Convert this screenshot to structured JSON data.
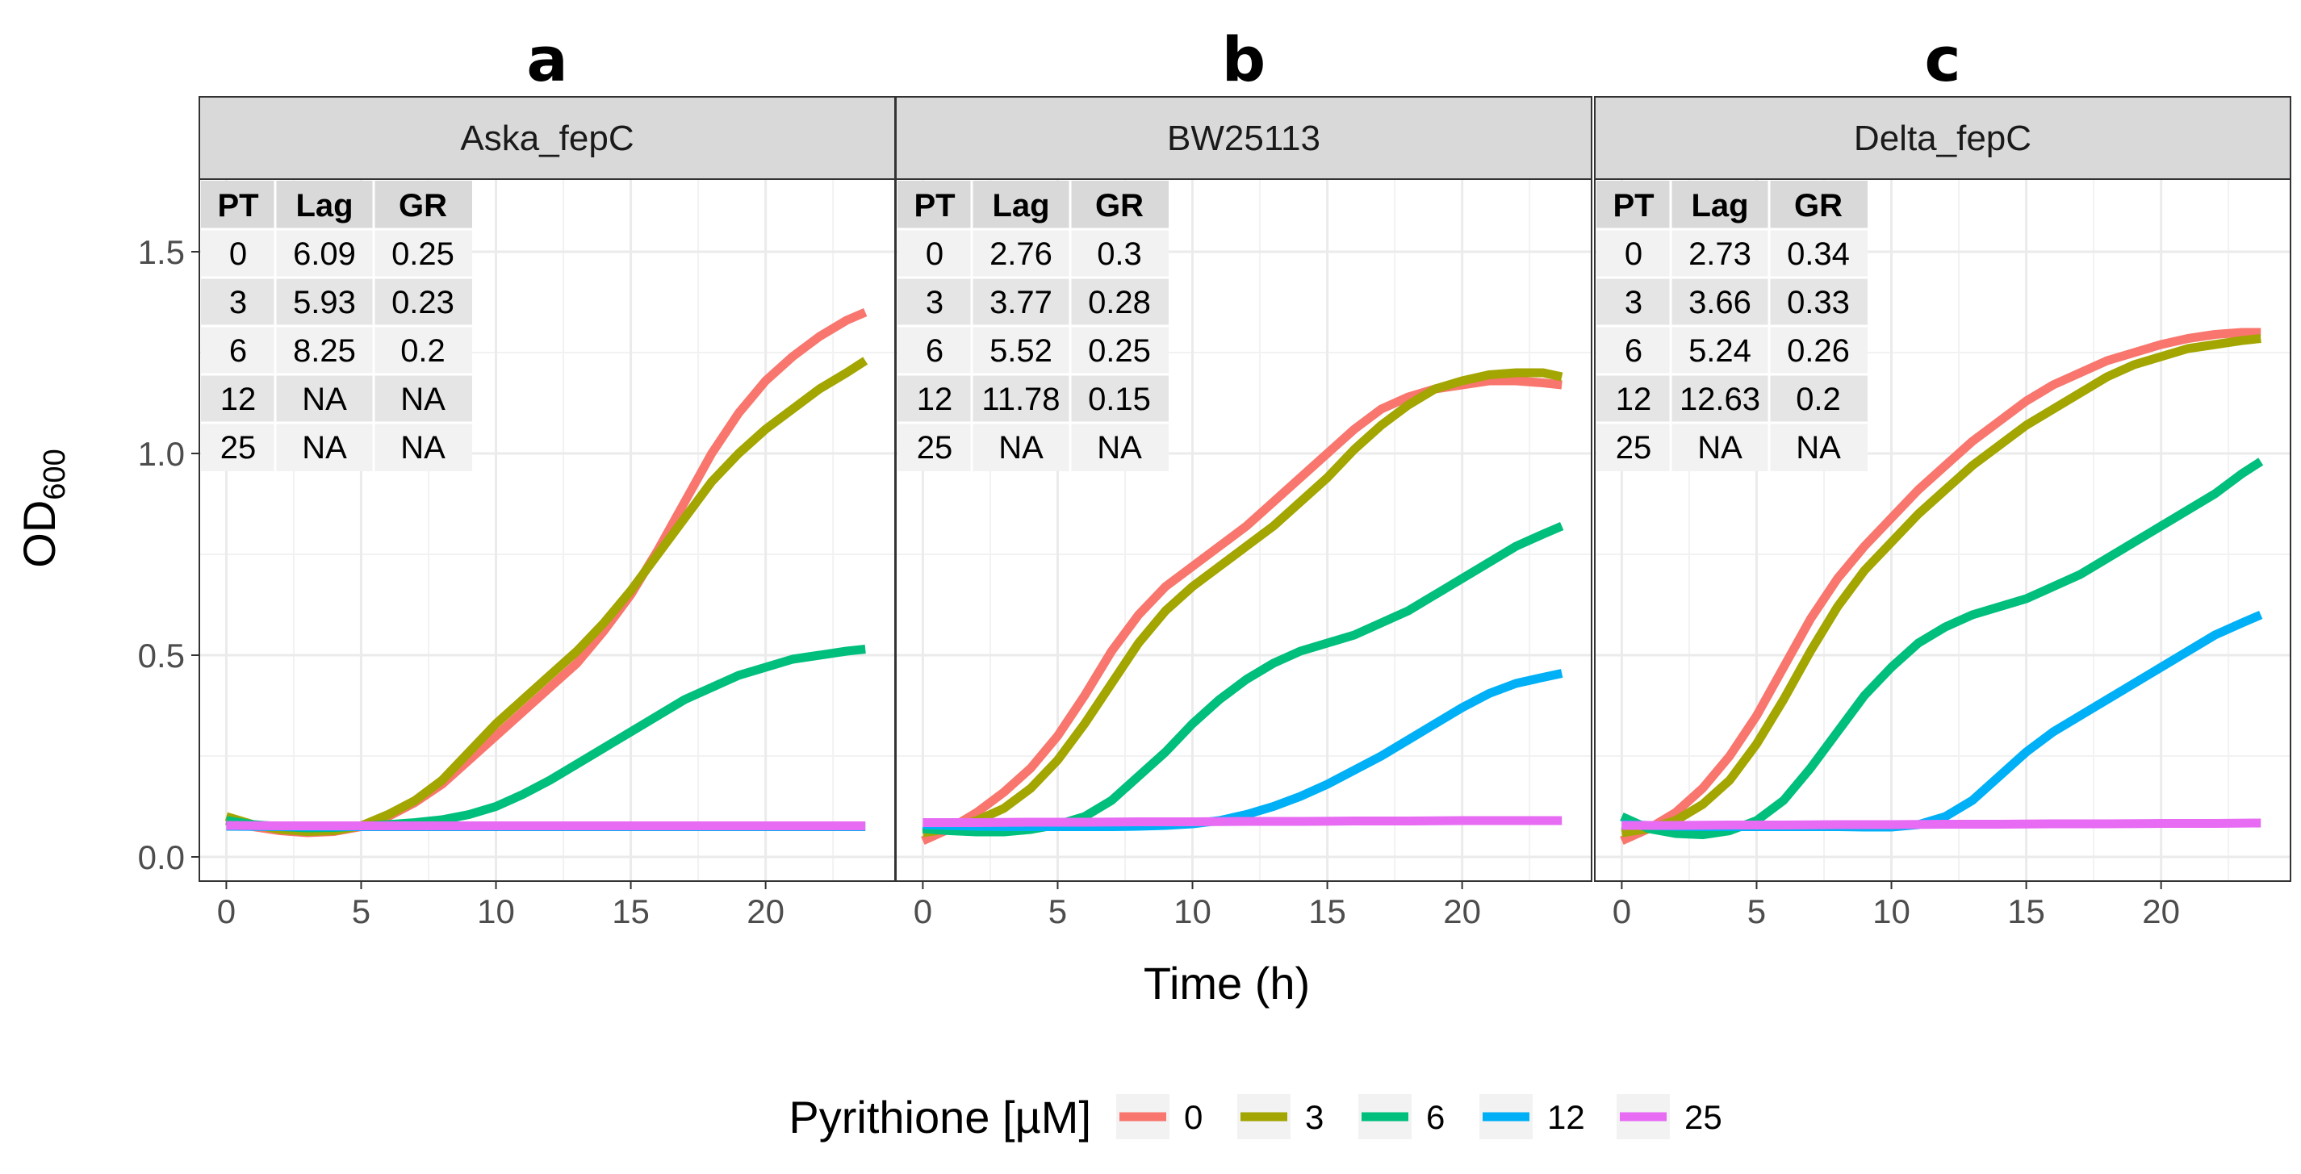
{
  "chart_data": {
    "type": "line",
    "ylabel_main": "OD",
    "ylabel_sub": "600",
    "xlabel": "Time (h)",
    "xlim": [
      -1,
      24.8
    ],
    "ylim": [
      -0.06,
      1.68
    ],
    "x_ticks": [
      0,
      5,
      10,
      15,
      20
    ],
    "x_tick_labels": [
      "0",
      "5",
      "10",
      "15",
      "20"
    ],
    "y_ticks": [
      0.0,
      0.5,
      1.0,
      1.5
    ],
    "y_tick_labels": [
      "0.0",
      "0.5",
      "1.0",
      "1.5"
    ],
    "grid": true,
    "legend": {
      "title": "Pyrithione [µM]",
      "position": "bottom",
      "entries": [
        {
          "label": "0",
          "color": "#F8766D"
        },
        {
          "label": "3",
          "color": "#A3A500"
        },
        {
          "label": "6",
          "color": "#00BF7D"
        },
        {
          "label": "12",
          "color": "#00B0F6"
        },
        {
          "label": "25",
          "color": "#E76BF3"
        }
      ]
    },
    "table_headers": [
      "PT",
      "Lag",
      "GR"
    ],
    "panels": [
      {
        "letter": "a",
        "strip": "Aska_fepC",
        "table": [
          [
            "0",
            "6.09",
            "0.25"
          ],
          [
            "3",
            "5.93",
            "0.23"
          ],
          [
            "6",
            "8.25",
            "0.2"
          ],
          [
            "12",
            "NA",
            "NA"
          ],
          [
            "25",
            "NA",
            "NA"
          ]
        ],
        "series": [
          {
            "name": "0",
            "x": [
              0,
              1,
              2,
              3,
              4,
              5,
              6,
              7,
              8,
              9,
              10,
              11,
              12,
              13,
              14,
              15,
              16,
              17,
              18,
              19,
              20,
              21,
              22,
              23,
              23.7
            ],
            "values": [
              0.09,
              0.075,
              0.065,
              0.06,
              0.063,
              0.075,
              0.1,
              0.135,
              0.18,
              0.24,
              0.3,
              0.36,
              0.42,
              0.48,
              0.56,
              0.65,
              0.76,
              0.88,
              1.0,
              1.1,
              1.18,
              1.24,
              1.29,
              1.33,
              1.35
            ]
          },
          {
            "name": "3",
            "x": [
              0,
              1,
              2,
              3,
              4,
              5,
              6,
              7,
              8,
              9,
              10,
              11,
              12,
              13,
              14,
              15,
              16,
              17,
              18,
              19,
              20,
              21,
              22,
              23,
              23.7
            ],
            "values": [
              0.1,
              0.08,
              0.068,
              0.063,
              0.065,
              0.077,
              0.105,
              0.14,
              0.19,
              0.26,
              0.33,
              0.39,
              0.45,
              0.51,
              0.58,
              0.66,
              0.75,
              0.84,
              0.93,
              1.0,
              1.06,
              1.11,
              1.16,
              1.2,
              1.23
            ]
          },
          {
            "name": "6",
            "x": [
              0,
              1,
              2,
              3,
              4,
              5,
              6,
              7,
              8,
              9,
              10,
              11,
              12,
              13,
              14,
              15,
              16,
              17,
              18,
              19,
              20,
              21,
              22,
              23,
              23.7
            ],
            "values": [
              0.09,
              0.08,
              0.075,
              0.072,
              0.073,
              0.076,
              0.08,
              0.085,
              0.092,
              0.105,
              0.125,
              0.155,
              0.19,
              0.23,
              0.27,
              0.31,
              0.35,
              0.39,
              0.42,
              0.45,
              0.47,
              0.49,
              0.5,
              0.51,
              0.515
            ]
          },
          {
            "name": "12",
            "x": [
              0,
              2,
              4,
              6,
              8,
              10,
              12,
              14,
              16,
              18,
              20,
              22,
              23.7
            ],
            "values": [
              0.076,
              0.075,
              0.075,
              0.075,
              0.075,
              0.075,
              0.075,
              0.075,
              0.075,
              0.075,
              0.075,
              0.075,
              0.075
            ]
          },
          {
            "name": "25",
            "x": [
              0,
              2,
              4,
              6,
              8,
              10,
              12,
              14,
              16,
              18,
              20,
              22,
              23.7
            ],
            "values": [
              0.078,
              0.077,
              0.077,
              0.077,
              0.077,
              0.077,
              0.077,
              0.077,
              0.077,
              0.077,
              0.077,
              0.077,
              0.077
            ]
          }
        ]
      },
      {
        "letter": "b",
        "strip": "BW25113",
        "table": [
          [
            "0",
            "2.76",
            "0.3"
          ],
          [
            "3",
            "3.77",
            "0.28"
          ],
          [
            "6",
            "5.52",
            "0.25"
          ],
          [
            "12",
            "11.78",
            "0.15"
          ],
          [
            "25",
            "NA",
            "NA"
          ]
        ],
        "series": [
          {
            "name": "0",
            "x": [
              0,
              1,
              2,
              3,
              4,
              5,
              6,
              7,
              8,
              9,
              10,
              11,
              12,
              13,
              14,
              15,
              16,
              17,
              18,
              19,
              20,
              21,
              22,
              23,
              23.7
            ],
            "values": [
              0.04,
              0.07,
              0.11,
              0.16,
              0.22,
              0.3,
              0.4,
              0.51,
              0.6,
              0.67,
              0.72,
              0.77,
              0.82,
              0.88,
              0.94,
              1.0,
              1.06,
              1.11,
              1.14,
              1.16,
              1.17,
              1.18,
              1.18,
              1.175,
              1.17
            ]
          },
          {
            "name": "3",
            "x": [
              0,
              1,
              2,
              3,
              4,
              5,
              6,
              7,
              8,
              9,
              10,
              11,
              12,
              13,
              14,
              15,
              16,
              17,
              18,
              19,
              20,
              21,
              22,
              23,
              23.7
            ],
            "values": [
              0.06,
              0.07,
              0.09,
              0.12,
              0.17,
              0.24,
              0.33,
              0.43,
              0.53,
              0.61,
              0.67,
              0.72,
              0.77,
              0.82,
              0.88,
              0.94,
              1.01,
              1.07,
              1.12,
              1.16,
              1.18,
              1.195,
              1.2,
              1.2,
              1.19
            ]
          },
          {
            "name": "6",
            "x": [
              0,
              1,
              2,
              3,
              4,
              5,
              6,
              7,
              8,
              9,
              10,
              11,
              12,
              13,
              14,
              15,
              16,
              17,
              18,
              19,
              20,
              21,
              22,
              23,
              23.7
            ],
            "values": [
              0.07,
              0.065,
              0.062,
              0.062,
              0.068,
              0.08,
              0.1,
              0.14,
              0.2,
              0.26,
              0.33,
              0.39,
              0.44,
              0.48,
              0.51,
              0.53,
              0.55,
              0.58,
              0.61,
              0.65,
              0.69,
              0.73,
              0.77,
              0.8,
              0.82
            ]
          },
          {
            "name": "12",
            "x": [
              0,
              1,
              2,
              3,
              4,
              5,
              6,
              7,
              8,
              9,
              10,
              11,
              12,
              13,
              14,
              15,
              16,
              17,
              18,
              19,
              20,
              21,
              22,
              23,
              23.7
            ],
            "values": [
              0.08,
              0.078,
              0.076,
              0.075,
              0.075,
              0.075,
              0.075,
              0.075,
              0.076,
              0.078,
              0.082,
              0.09,
              0.105,
              0.125,
              0.15,
              0.18,
              0.215,
              0.25,
              0.29,
              0.33,
              0.37,
              0.405,
              0.43,
              0.445,
              0.455
            ]
          },
          {
            "name": "25",
            "x": [
              0,
              2,
              4,
              6,
              8,
              10,
              12,
              14,
              16,
              18,
              20,
              22,
              23.7
            ],
            "values": [
              0.085,
              0.085,
              0.086,
              0.086,
              0.087,
              0.087,
              0.088,
              0.088,
              0.089,
              0.089,
              0.09,
              0.09,
              0.09
            ]
          }
        ]
      },
      {
        "letter": "c",
        "strip": "Delta_fepC",
        "table": [
          [
            "0",
            "2.73",
            "0.34"
          ],
          [
            "3",
            "3.66",
            "0.33"
          ],
          [
            "6",
            "5.24",
            "0.26"
          ],
          [
            "12",
            "12.63",
            "0.2"
          ],
          [
            "25",
            "NA",
            "NA"
          ]
        ],
        "series": [
          {
            "name": "0",
            "x": [
              0,
              1,
              2,
              3,
              4,
              5,
              6,
              7,
              8,
              9,
              10,
              11,
              12,
              13,
              14,
              15,
              16,
              17,
              18,
              19,
              20,
              21,
              22,
              23,
              23.7
            ],
            "values": [
              0.04,
              0.07,
              0.11,
              0.17,
              0.25,
              0.35,
              0.47,
              0.59,
              0.69,
              0.77,
              0.84,
              0.91,
              0.97,
              1.03,
              1.08,
              1.13,
              1.17,
              1.2,
              1.23,
              1.25,
              1.27,
              1.285,
              1.295,
              1.3,
              1.3
            ]
          },
          {
            "name": "3",
            "x": [
              0,
              1,
              2,
              3,
              4,
              5,
              6,
              7,
              8,
              9,
              10,
              11,
              12,
              13,
              14,
              15,
              16,
              17,
              18,
              19,
              20,
              21,
              22,
              23,
              23.7
            ],
            "values": [
              0.06,
              0.07,
              0.09,
              0.13,
              0.19,
              0.28,
              0.39,
              0.51,
              0.62,
              0.71,
              0.78,
              0.85,
              0.91,
              0.97,
              1.02,
              1.07,
              1.11,
              1.15,
              1.19,
              1.22,
              1.24,
              1.26,
              1.27,
              1.28,
              1.285
            ]
          },
          {
            "name": "6",
            "x": [
              0,
              1,
              2,
              3,
              4,
              5,
              6,
              7,
              8,
              9,
              10,
              11,
              12,
              13,
              14,
              15,
              16,
              17,
              18,
              19,
              20,
              21,
              22,
              23,
              23.7
            ],
            "values": [
              0.1,
              0.07,
              0.058,
              0.055,
              0.065,
              0.09,
              0.14,
              0.22,
              0.31,
              0.4,
              0.47,
              0.53,
              0.57,
              0.6,
              0.62,
              0.64,
              0.67,
              0.7,
              0.74,
              0.78,
              0.82,
              0.86,
              0.9,
              0.95,
              0.98
            ]
          },
          {
            "name": "12",
            "x": [
              0,
              1,
              2,
              3,
              4,
              5,
              6,
              7,
              8,
              9,
              10,
              11,
              12,
              13,
              14,
              15,
              16,
              17,
              18,
              19,
              20,
              21,
              22,
              23,
              23.7
            ],
            "values": [
              0.08,
              0.078,
              0.076,
              0.075,
              0.075,
              0.075,
              0.075,
              0.075,
              0.075,
              0.074,
              0.074,
              0.08,
              0.1,
              0.14,
              0.2,
              0.26,
              0.31,
              0.35,
              0.39,
              0.43,
              0.47,
              0.51,
              0.55,
              0.58,
              0.6
            ]
          },
          {
            "name": "25",
            "x": [
              0,
              2,
              4,
              6,
              8,
              10,
              12,
              14,
              16,
              18,
              20,
              22,
              23.7
            ],
            "values": [
              0.078,
              0.078,
              0.079,
              0.079,
              0.08,
              0.08,
              0.081,
              0.081,
              0.082,
              0.082,
              0.083,
              0.083,
              0.084
            ]
          }
        ]
      }
    ]
  }
}
